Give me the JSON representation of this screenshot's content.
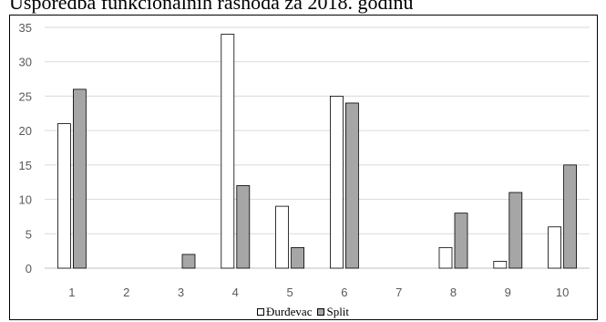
{
  "title": "Usporedba funkcionalnih rashoda za 2018. godinu",
  "chart_data": {
    "type": "bar",
    "categories": [
      "1",
      "2",
      "3",
      "4",
      "5",
      "6",
      "7",
      "8",
      "9",
      "10"
    ],
    "series": [
      {
        "name": "Đurđevac",
        "values": [
          21,
          0,
          0,
          34,
          9,
          25,
          0,
          3,
          1,
          6
        ],
        "color": "#ffffff"
      },
      {
        "name": "Split",
        "values": [
          26,
          0,
          2,
          12,
          3,
          24,
          0,
          8,
          11,
          15
        ],
        "color": "#a6a6a6"
      }
    ],
    "ylim": [
      0,
      35
    ],
    "yticks": [
      0,
      5,
      10,
      15,
      20,
      25,
      30,
      35
    ],
    "grid": true,
    "legend": "bottom",
    "xlabel": "",
    "ylabel": ""
  }
}
